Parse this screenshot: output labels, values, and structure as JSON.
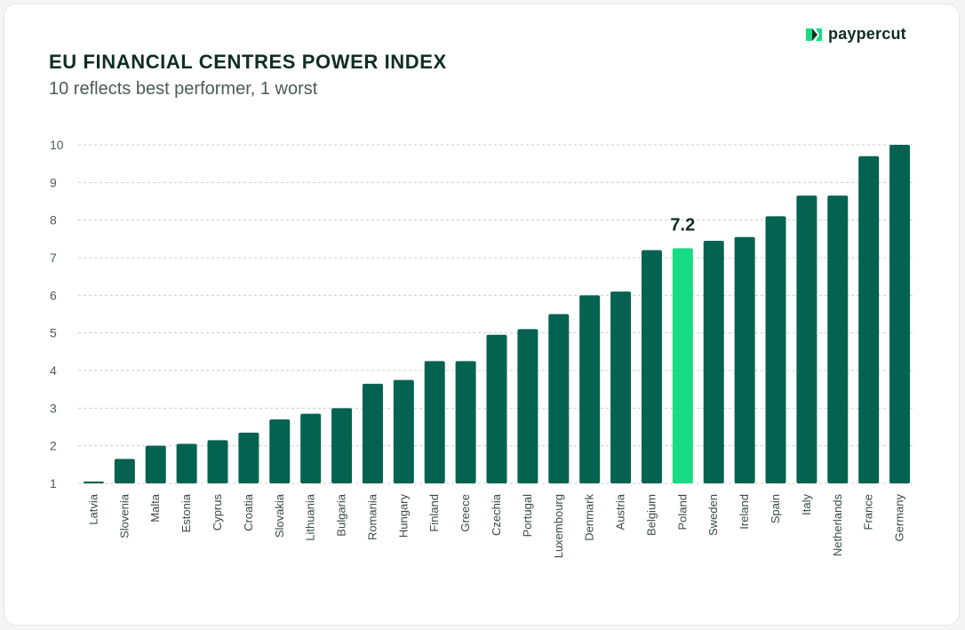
{
  "header": {
    "title": "EU FINANCIAL CENTRES POWER INDEX",
    "subtitle": "10 reflects best performer, 1 worst",
    "brand": "paypercut"
  },
  "colors": {
    "bar": "#046350",
    "highlight": "#18dc84",
    "grid": "#c8cdca",
    "brand_icon": "#18dc84"
  },
  "chart_data": {
    "type": "bar",
    "title": "EU FINANCIAL CENTRES POWER INDEX",
    "subtitle": "10 reflects best performer, 1 worst",
    "xlabel": "",
    "ylabel": "",
    "ylim": [
      1,
      10
    ],
    "yticks": [
      1,
      2,
      3,
      4,
      5,
      6,
      7,
      8,
      9,
      10
    ],
    "grid": true,
    "categories": [
      "Latvia",
      "Slovenia",
      "Malta",
      "Estonia",
      "Cyprus",
      "Croatia",
      "Slovakia",
      "Lithuania",
      "Bulgaria",
      "Romania",
      "Hungary",
      "Finland",
      "Greece",
      "Czechia",
      "Portugal",
      "Luxembourg",
      "Denmark",
      "Austria",
      "Belgium",
      "Poland",
      "Sweden",
      "Ireland",
      "Spain",
      "Italy",
      "Netherlands",
      "France",
      "Germany"
    ],
    "values": [
      1.05,
      1.65,
      2.0,
      2.05,
      2.15,
      2.35,
      2.7,
      2.85,
      3.0,
      3.65,
      3.75,
      4.25,
      4.25,
      4.95,
      5.1,
      5.5,
      6.0,
      6.1,
      7.2,
      7.25,
      7.45,
      7.55,
      8.1,
      8.65,
      8.65,
      9.7,
      10.0
    ],
    "highlight": "Poland",
    "data_labels": [
      {
        "category": "Poland",
        "text": "7.2"
      }
    ]
  }
}
